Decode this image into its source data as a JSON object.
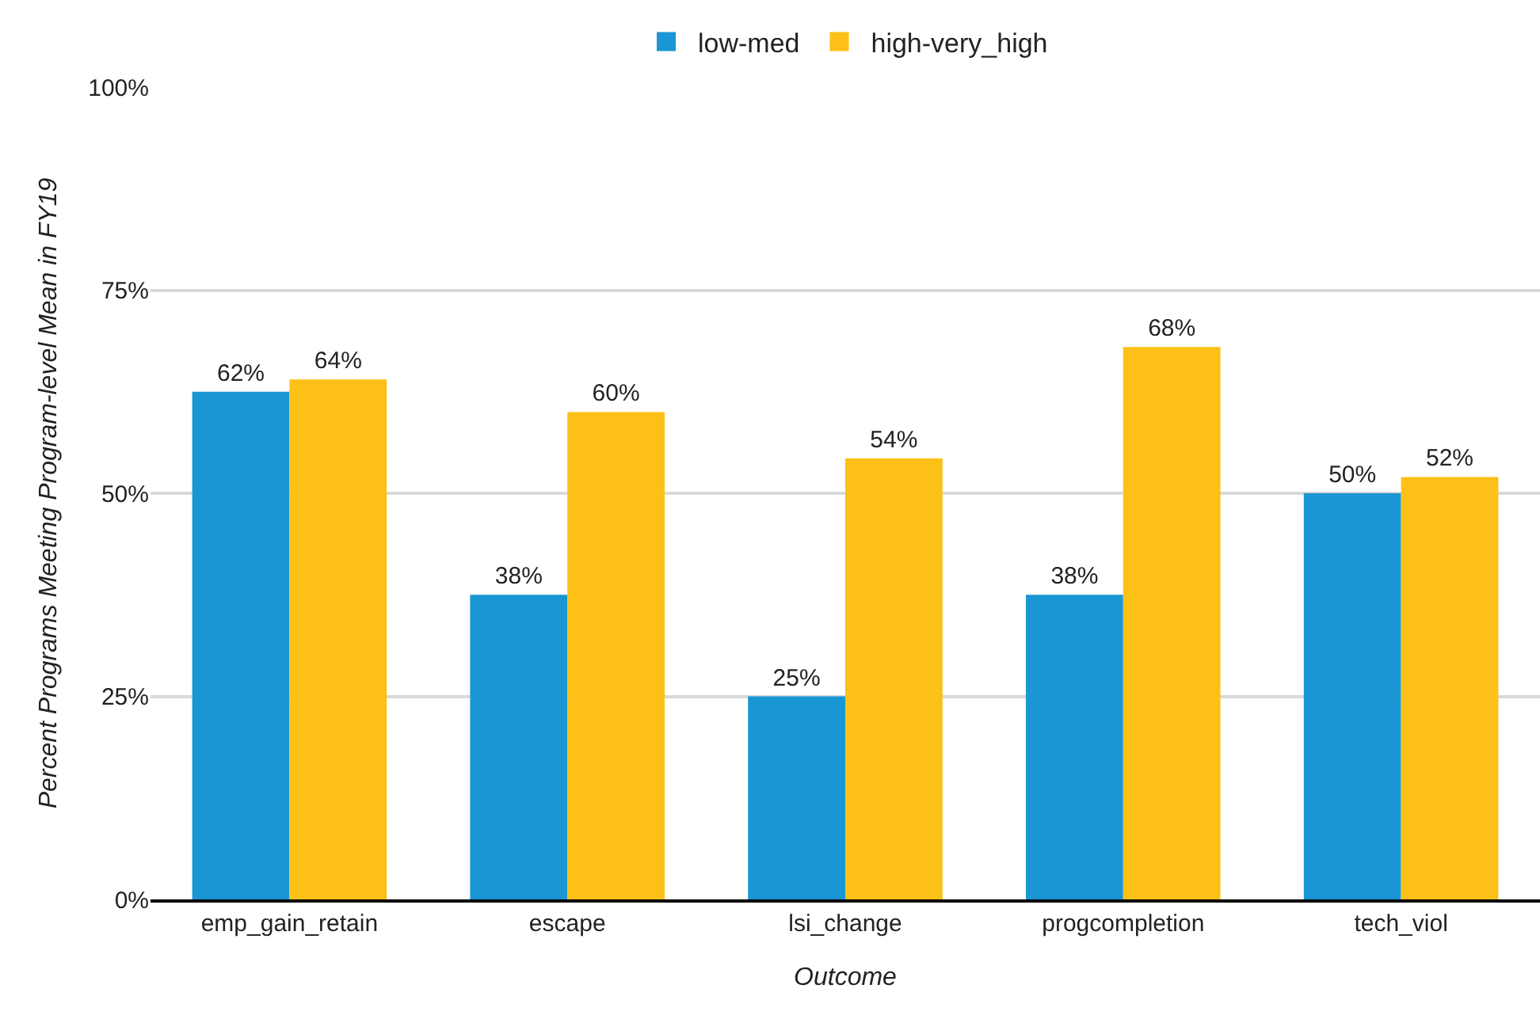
{
  "chart_data": {
    "type": "bar",
    "xlabel": "Outcome",
    "ylabel": "Percent Programs Meeting Program-level Mean in FY19",
    "categories": [
      "emp_gain_retain",
      "escape",
      "lsi_change",
      "progcompletion",
      "tech_viol"
    ],
    "series": [
      {
        "name": "low-med",
        "color": "#1a96d4",
        "values": [
          62.5,
          37.5,
          25,
          37.5,
          50
        ],
        "value_labels": [
          "62%",
          "38%",
          "25%",
          "38%",
          "50%"
        ]
      },
      {
        "name": "high-very_high",
        "color": "#fcc016",
        "values": [
          64,
          60,
          54.3,
          68,
          52
        ],
        "value_labels": [
          "64%",
          "60%",
          "54%",
          "68%",
          "52%"
        ]
      }
    ],
    "ylim": [
      0,
      100
    ],
    "yticks": [
      {
        "value": 0,
        "label": "0%"
      },
      {
        "value": 25,
        "label": "25%"
      },
      {
        "value": 50,
        "label": "50%"
      },
      {
        "value": 75,
        "label": "75%"
      },
      {
        "value": 100,
        "label": "100%"
      }
    ],
    "grid": "y",
    "legend": "top"
  }
}
